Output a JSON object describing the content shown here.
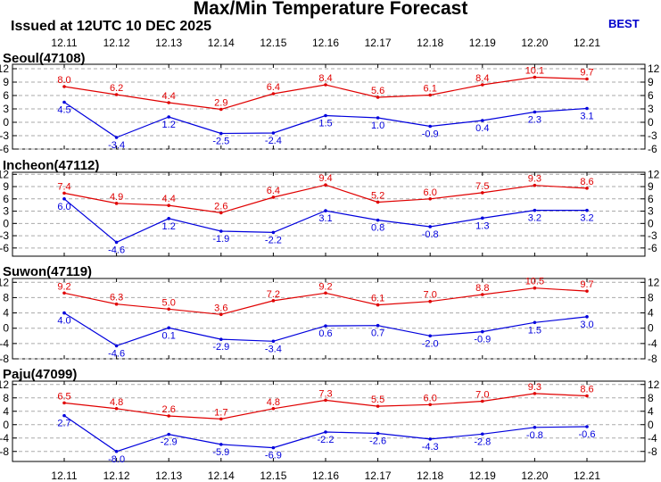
{
  "header": {
    "title": "Max/Min Temperature Forecast",
    "issued": "Issued at 12UTC 10 DEC 2025",
    "model": "BEST"
  },
  "colors": {
    "max": "#e00000",
    "min": "#0000dd",
    "grid": "#aaaaaa",
    "frame": "#000000"
  },
  "chart_data": [
    {
      "type": "line",
      "title": "Seoul(47108)",
      "categories": [
        "12.11",
        "12.12",
        "12.13",
        "12.14",
        "12.15",
        "12.16",
        "12.17",
        "12.18",
        "12.19",
        "12.20",
        "12.21"
      ],
      "series": [
        {
          "values": [
            8.0,
            6.2,
            4.4,
            2.9,
            6.4,
            8.4,
            5.6,
            6.1,
            8.4,
            10.1,
            9.7
          ],
          "labels": [
            "8.0",
            "6.2",
            "4.4",
            "2.9",
            "6.4",
            "8.4",
            "5.6",
            "6.1",
            "8.4",
            "10.1",
            "9.7"
          ]
        },
        {
          "values": [
            4.5,
            -3.4,
            1.2,
            -2.5,
            -2.4,
            1.5,
            1.0,
            -0.9,
            0.4,
            2.3,
            3.1
          ],
          "labels": [
            "4.5",
            "-3.4",
            "1.2",
            "-2.5",
            "-2.4",
            "1.5",
            "1.0",
            "-0.9",
            "0.4",
            "2.3",
            "3.1"
          ]
        }
      ],
      "yticks": [
        12,
        9,
        6,
        3,
        0,
        -3,
        -6
      ],
      "ylim": [
        -6,
        13
      ],
      "grid": "dashed"
    },
    {
      "type": "line",
      "title": "Incheon(47112)",
      "categories": [
        "12.11",
        "12.12",
        "12.13",
        "12.14",
        "12.15",
        "12.16",
        "12.17",
        "12.18",
        "12.19",
        "12.20",
        "12.21"
      ],
      "series": [
        {
          "values": [
            7.4,
            4.9,
            4.4,
            2.6,
            6.4,
            9.4,
            5.2,
            6.0,
            7.5,
            9.3,
            8.6
          ],
          "labels": [
            "7.4",
            "4.9",
            "4.4",
            "2.6",
            "6.4",
            "9.4",
            "5.2",
            "6.0",
            "7.5",
            "9.3",
            "8.6"
          ]
        },
        {
          "values": [
            6.0,
            -4.6,
            1.2,
            -1.9,
            -2.2,
            3.1,
            0.8,
            -0.8,
            1.3,
            3.2,
            3.2
          ],
          "labels": [
            "6.0",
            "-4.6",
            "1.2",
            "-1.9",
            "-2.2",
            "3.1",
            "0.8",
            "-0.8",
            "1.3",
            "3.2",
            "3.2"
          ]
        }
      ],
      "yticks": [
        12,
        9,
        6,
        3,
        0,
        -3,
        -6
      ],
      "ylim": [
        -8,
        12.5
      ],
      "grid": "dashed"
    },
    {
      "type": "line",
      "title": "Suwon(47119)",
      "categories": [
        "12.11",
        "12.12",
        "12.13",
        "12.14",
        "12.15",
        "12.16",
        "12.17",
        "12.18",
        "12.19",
        "12.20",
        "12.21"
      ],
      "series": [
        {
          "values": [
            9.2,
            6.3,
            5.0,
            3.6,
            7.2,
            9.2,
            6.1,
            7.0,
            8.8,
            10.5,
            9.7
          ],
          "labels": [
            "9.2",
            "6.3",
            "5.0",
            "3.6",
            "7.2",
            "9.2",
            "6.1",
            "7.0",
            "8.8",
            "10.5",
            "9.7"
          ]
        },
        {
          "values": [
            4.0,
            -4.6,
            0.1,
            -2.9,
            -3.4,
            0.6,
            0.7,
            -2.0,
            -0.9,
            1.5,
            3.0
          ],
          "labels": [
            "4.0",
            "-4.6",
            "0.1",
            "-2.9",
            "-3.4",
            "0.6",
            "0.7",
            "-2.0",
            "-0.9",
            "1.5",
            "3.0"
          ]
        }
      ],
      "yticks": [
        12,
        8,
        4,
        0,
        -4,
        -8
      ],
      "ylim": [
        -8,
        13
      ],
      "grid": "dashed"
    },
    {
      "type": "line",
      "title": "Paju(47099)",
      "categories": [
        "12.11",
        "12.12",
        "12.13",
        "12.14",
        "12.15",
        "12.16",
        "12.17",
        "12.18",
        "12.19",
        "12.20",
        "12.21"
      ],
      "series": [
        {
          "values": [
            6.5,
            4.8,
            2.6,
            1.7,
            4.8,
            7.3,
            5.5,
            6.0,
            7.0,
            9.3,
            8.6
          ],
          "labels": [
            "6.5",
            "4.8",
            "2.6",
            "1.7",
            "4.8",
            "7.3",
            "5.5",
            "6.0",
            "7.0",
            "9.3",
            "8.6"
          ]
        },
        {
          "values": [
            2.7,
            -8.0,
            -2.9,
            -5.9,
            -6.9,
            -2.2,
            -2.6,
            -4.3,
            -2.8,
            -0.8,
            -0.6
          ],
          "labels": [
            "2.7",
            "-8.0",
            "-2.9",
            "-5.9",
            "-6.9",
            "-2.2",
            "-2.6",
            "-4.3",
            "-2.8",
            "-0.8",
            "-0.6"
          ]
        }
      ],
      "yticks": [
        12,
        8,
        4,
        0,
        -4,
        -8
      ],
      "ylim": [
        -11,
        13
      ],
      "grid": "dashed"
    }
  ]
}
